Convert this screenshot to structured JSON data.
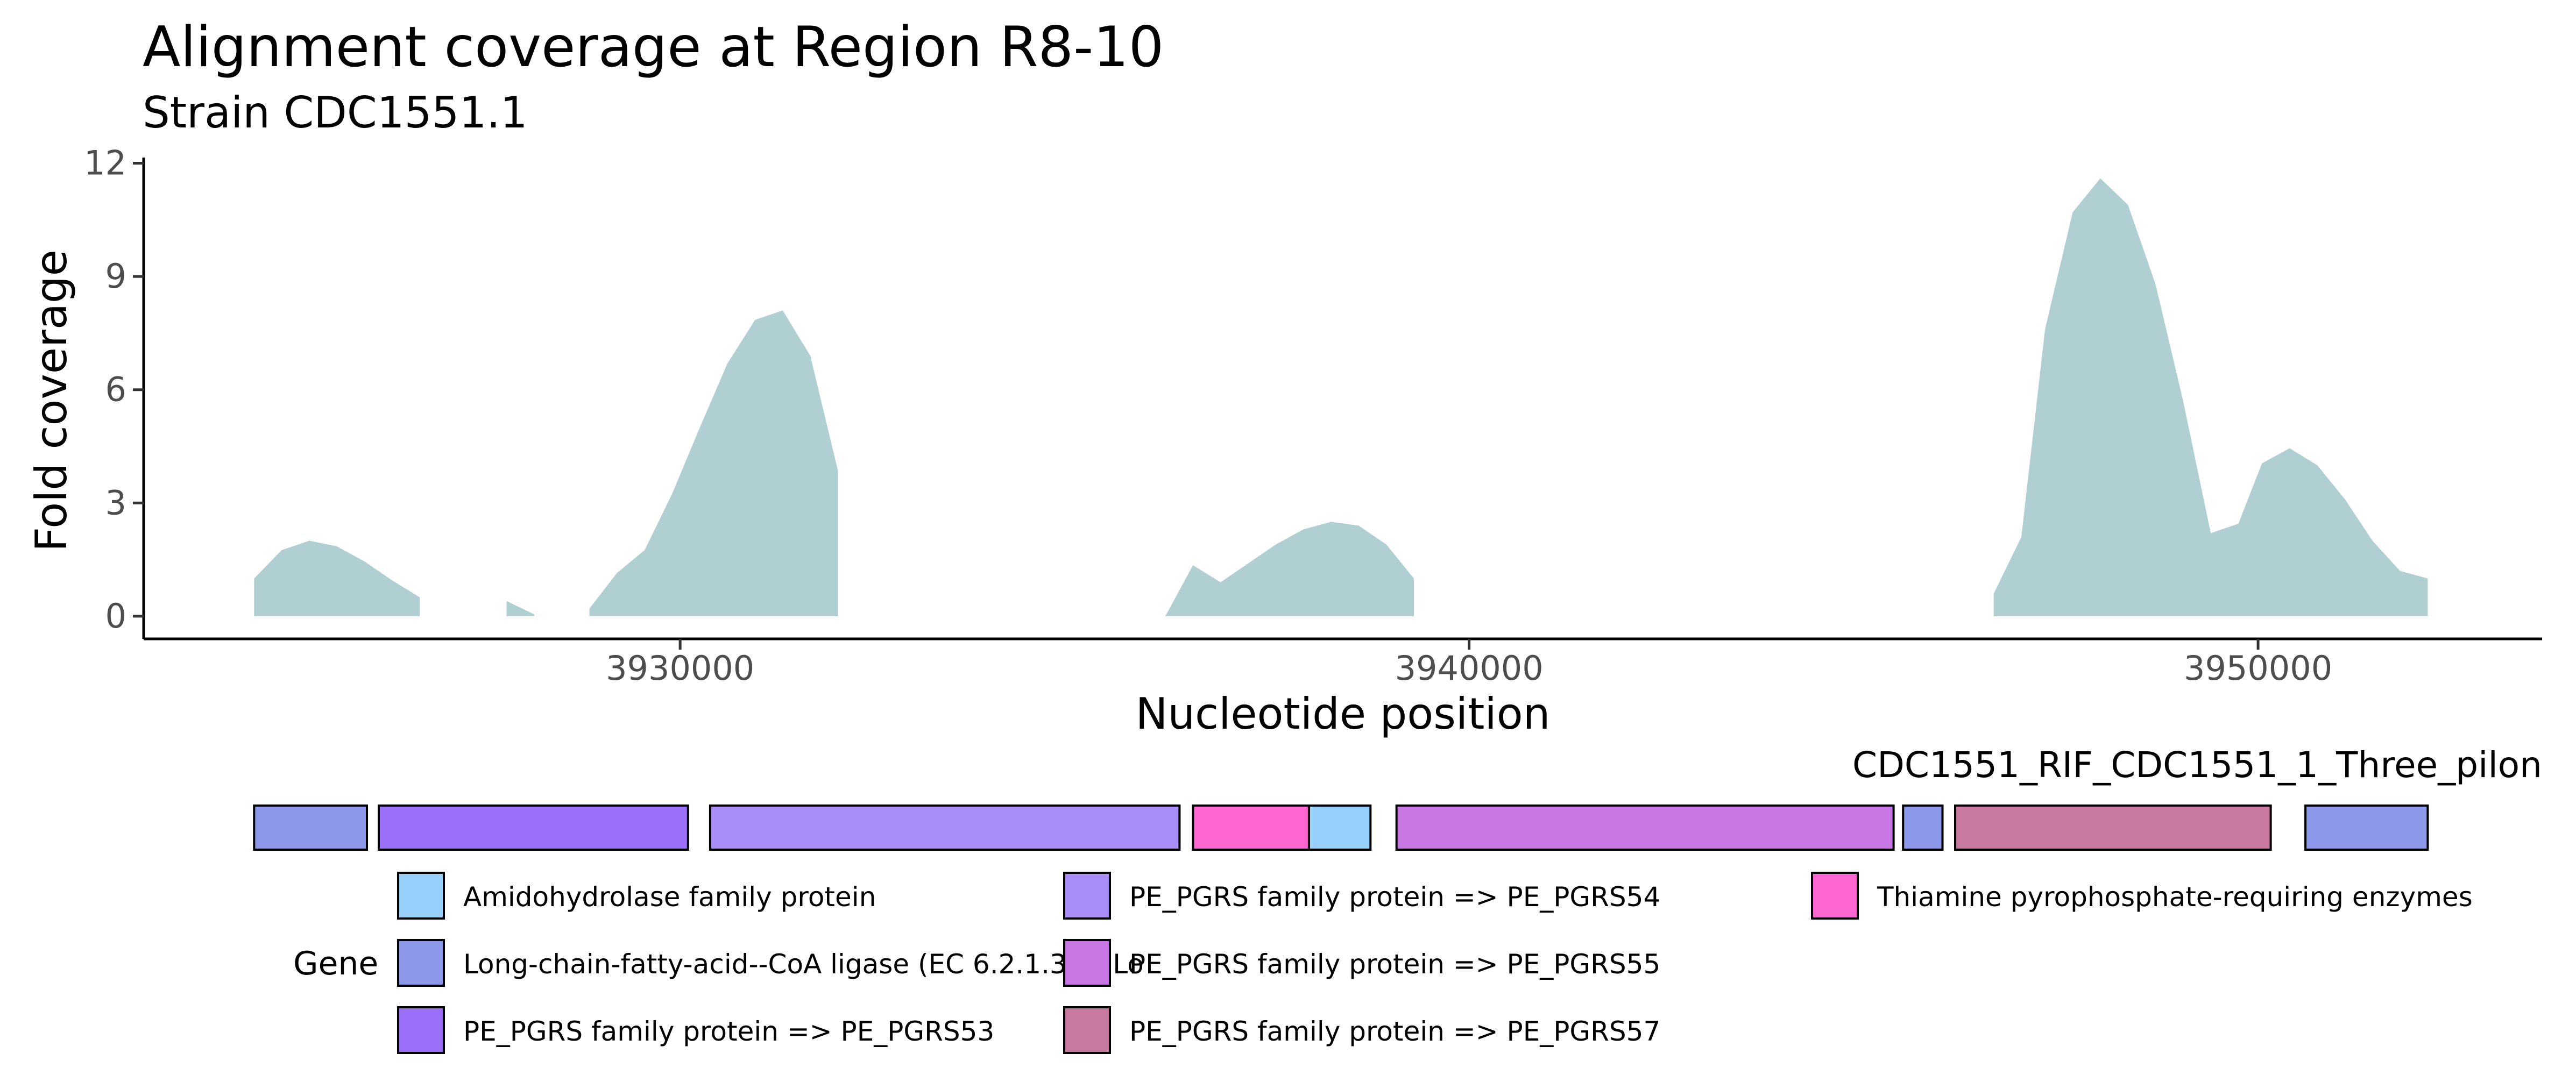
{
  "chart_data": [
    {
      "type": "area",
      "title": "Alignment coverage at Region R8-10",
      "subtitle": "Strain CDC1551.1",
      "xlabel": "Nucleotide position",
      "ylabel": "Fold coverage",
      "xlim": [
        3923200,
        3953600
      ],
      "ylim": [
        -0.6,
        12.15
      ],
      "x_ticks": [
        3930000,
        3940000,
        3950000
      ],
      "x_tick_labels": [
        "3930000",
        "3940000",
        "3950000"
      ],
      "y_ticks": [
        0,
        3,
        6,
        9,
        12
      ],
      "y_tick_labels": [
        "0",
        "3",
        "6",
        "9",
        "12"
      ],
      "grid": false,
      "fill_color": "#b0cfd2",
      "series": [
        {
          "segments": [
            [
              [
                3924600,
                1.0
              ],
              [
                3924950,
                1.75
              ],
              [
                3925300,
                2.0
              ],
              [
                3925650,
                1.85
              ],
              [
                3926000,
                1.45
              ],
              [
                3926350,
                0.95
              ],
              [
                3926700,
                0.5
              ],
              [
                3926700,
                0.0
              ]
            ],
            [
              [
                3927800,
                0.4
              ],
              [
                3928150,
                0.05
              ],
              [
                3928150,
                0.0
              ]
            ],
            [
              [
                3928850,
                0.2
              ],
              [
                3929200,
                1.15
              ],
              [
                3929550,
                1.75
              ],
              [
                3929900,
                3.25
              ],
              [
                3930250,
                5.0
              ],
              [
                3930600,
                6.7
              ],
              [
                3930950,
                7.85
              ],
              [
                3931300,
                8.1
              ],
              [
                3931650,
                6.9
              ],
              [
                3932000,
                3.85
              ],
              [
                3932000,
                0.0
              ]
            ],
            [
              [
                3936150,
                0.0
              ],
              [
                3936500,
                1.35
              ],
              [
                3936850,
                0.9
              ],
              [
                3937200,
                1.4
              ],
              [
                3937550,
                1.9
              ],
              [
                3937900,
                2.3
              ],
              [
                3938250,
                2.5
              ],
              [
                3938600,
                2.4
              ],
              [
                3938950,
                1.9
              ],
              [
                3939300,
                1.0
              ],
              [
                3939300,
                0.0
              ]
            ],
            [
              [
                3946650,
                0.6
              ],
              [
                3947000,
                2.1
              ],
              [
                3947300,
                7.6
              ],
              [
                3947650,
                10.7
              ],
              [
                3948000,
                11.6
              ],
              [
                3948350,
                10.9
              ],
              [
                3948700,
                8.8
              ],
              [
                3949050,
                5.7
              ],
              [
                3949400,
                2.2
              ],
              [
                3949750,
                2.45
              ],
              [
                3950050,
                4.05
              ],
              [
                3950400,
                4.45
              ],
              [
                3950750,
                4.0
              ],
              [
                3951100,
                3.1
              ],
              [
                3951450,
                2.0
              ],
              [
                3951800,
                1.2
              ],
              [
                3952150,
                1.0
              ],
              [
                3952150,
                0.0
              ]
            ]
          ]
        }
      ]
    },
    {
      "type": "gene_track",
      "title": "CDC1551_RIF_CDC1551_1_Three_pilon",
      "legend_title": "Gene",
      "genes": [
        {
          "start": 3924600,
          "end": 3926030,
          "product": "Long-chain-fatty-acid--CoA ligase (EC 6.2.1.3)@ Lo",
          "color": "#8b97e8"
        },
        {
          "start": 3926180,
          "end": 3930100,
          "product": "PE_PGRS family protein => PE_PGRS53",
          "color": "#9b6ff8"
        },
        {
          "start": 3930380,
          "end": 3936330,
          "product": "PE_PGRS family protein => PE_PGRS54",
          "color": "#a98ef8"
        },
        {
          "start": 3936500,
          "end": 3937970,
          "product": "Thiamine pyrophosphate-requiring enzymes",
          "color": "#fe66d1"
        },
        {
          "start": 3937970,
          "end": 3938750,
          "product": "Amidohydrolase family protein",
          "color": "#96cff9"
        },
        {
          "start": 3939080,
          "end": 3945380,
          "product": "PE_PGRS family protein => PE_PGRS55",
          "color": "#c876e4"
        },
        {
          "start": 3945500,
          "end": 3946000,
          "product": "Long-chain-fatty-acid--CoA ligase (EC 6.2.1.3)@ Lo",
          "color": "#8b97e8"
        },
        {
          "start": 3946160,
          "end": 3950160,
          "product": "PE_PGRS family protein => PE_PGRS57",
          "color": "#c8799f"
        },
        {
          "start": 3950600,
          "end": 3952150,
          "product": "Long-chain-fatty-acid--CoA ligase (EC 6.2.1.3)@ Lo",
          "color": "#8b97e8"
        }
      ],
      "legend": [
        {
          "label": "Amidohydrolase family protein",
          "color": "#96cff9"
        },
        {
          "label": "Long-chain-fatty-acid--CoA ligase (EC 6.2.1.3)@ Lo",
          "color": "#8b97e8"
        },
        {
          "label": "PE_PGRS family protein => PE_PGRS53",
          "color": "#9b6ff8"
        },
        {
          "label": "PE_PGRS family protein => PE_PGRS54",
          "color": "#a98ef8"
        },
        {
          "label": "PE_PGRS family protein => PE_PGRS55",
          "color": "#c876e4"
        },
        {
          "label": "PE_PGRS family protein => PE_PGRS57",
          "color": "#c8799f"
        },
        {
          "label": "Thiamine pyrophosphate-requiring enzymes",
          "color": "#fe66d1"
        }
      ]
    }
  ]
}
